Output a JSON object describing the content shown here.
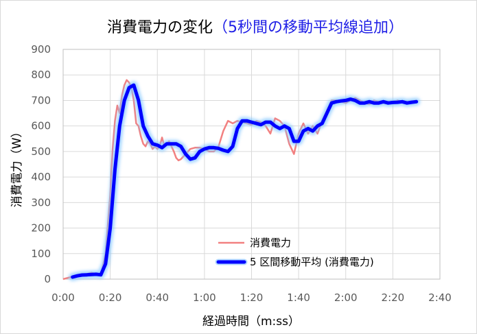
{
  "chart_data": {
    "type": "line",
    "title": "消費電力の変化",
    "title_suffix": "（5秒間の移動平均線追加）",
    "title_color": "#000000",
    "title_suffix_color": "#1f1fe6",
    "xlabel": "経過時間（m:ss）",
    "ylabel": "消費電力（W）",
    "xlim": [
      0,
      160
    ],
    "ylim": [
      0,
      900
    ],
    "x_ticks": [
      0,
      20,
      40,
      60,
      80,
      100,
      120,
      140,
      160
    ],
    "x_tick_labels": [
      "0:00",
      "0:20",
      "0:40",
      "1:00",
      "1:20",
      "1:40",
      "2:00",
      "2:20",
      "2:40"
    ],
    "y_ticks": [
      0,
      100,
      200,
      300,
      400,
      500,
      600,
      700,
      800,
      900
    ],
    "y_tick_labels": [
      "0",
      "100",
      "200",
      "300",
      "400",
      "500",
      "600",
      "700",
      "800",
      "900"
    ],
    "grid": true,
    "legend_position": "bottom-right",
    "series": [
      {
        "name": "消費電力",
        "color": "#f28080",
        "style": "thin",
        "x": [
          0,
          2,
          4,
          6,
          8,
          10,
          12,
          14,
          16,
          18,
          20,
          21,
          22,
          23,
          24,
          25,
          26,
          27,
          28,
          29,
          30,
          31,
          32,
          33,
          34,
          35,
          36,
          37,
          38,
          39,
          40,
          41,
          42,
          43,
          44,
          45,
          46,
          47,
          48,
          49,
          50,
          52,
          54,
          56,
          58,
          60,
          62,
          64,
          66,
          68,
          70,
          72,
          74,
          76,
          78,
          80,
          82,
          84,
          86,
          88,
          90,
          92,
          94,
          96,
          98,
          100,
          102,
          104,
          106,
          108,
          110,
          112,
          114,
          116,
          118,
          120,
          122,
          124,
          126,
          128,
          130,
          132,
          134,
          136,
          138,
          140,
          142,
          144,
          146,
          148,
          150
        ],
        "y": [
          0,
          5,
          10,
          15,
          15,
          20,
          25,
          20,
          15,
          100,
          330,
          510,
          620,
          680,
          650,
          720,
          760,
          780,
          770,
          750,
          700,
          610,
          600,
          560,
          530,
          520,
          540,
          530,
          510,
          520,
          510,
          520,
          555,
          520,
          530,
          540,
          520,
          500,
          475,
          465,
          470,
          490,
          510,
          515,
          515,
          510,
          500,
          500,
          520,
          580,
          620,
          610,
          620,
          615,
          610,
          605,
          620,
          615,
          600,
          570,
          630,
          620,
          600,
          530,
          490,
          570,
          610,
          570,
          600,
          570,
          620,
          660,
          700,
          700,
          695,
          690,
          700,
          710,
          700,
          690,
          685,
          700,
          695,
          690,
          695,
          690,
          700,
          695,
          690,
          695,
          700
        ]
      },
      {
        "name": "5 区間移動平均 (消費電力)",
        "color": "#0000ff",
        "style": "thick-glow",
        "x": [
          4,
          6,
          8,
          10,
          12,
          14,
          16,
          18,
          20,
          22,
          24,
          26,
          28,
          30,
          32,
          34,
          36,
          38,
          40,
          42,
          44,
          46,
          48,
          50,
          52,
          54,
          56,
          58,
          60,
          62,
          64,
          66,
          68,
          70,
          72,
          74,
          76,
          78,
          80,
          82,
          84,
          86,
          88,
          90,
          92,
          94,
          96,
          98,
          100,
          102,
          104,
          106,
          108,
          110,
          112,
          114,
          116,
          118,
          120,
          122,
          124,
          126,
          128,
          130,
          132,
          134,
          136,
          138,
          140,
          142,
          144,
          146,
          148,
          150
        ],
        "y": [
          8,
          13,
          16,
          17,
          18,
          19,
          17,
          60,
          200,
          430,
          600,
          700,
          750,
          760,
          700,
          600,
          560,
          530,
          525,
          515,
          530,
          530,
          530,
          520,
          490,
          470,
          475,
          500,
          510,
          515,
          515,
          512,
          505,
          500,
          520,
          590,
          620,
          620,
          615,
          610,
          605,
          615,
          615,
          600,
          590,
          600,
          590,
          540,
          540,
          580,
          590,
          580,
          600,
          610,
          650,
          690,
          695,
          698,
          700,
          705,
          700,
          690,
          690,
          695,
          690,
          690,
          695,
          690,
          692,
          693,
          695,
          690,
          693,
          695
        ]
      }
    ]
  }
}
